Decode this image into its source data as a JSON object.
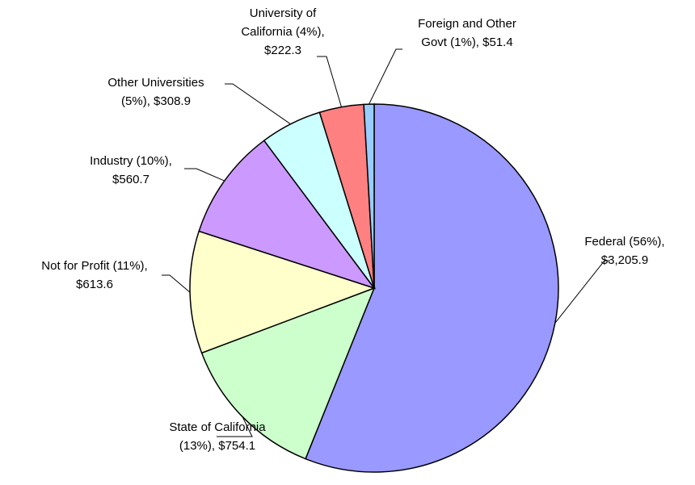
{
  "chart_data": {
    "type": "pie",
    "values": [
      3205.9,
      754.1,
      613.6,
      560.7,
      308.9,
      222.3,
      51.4
    ],
    "value_labels": [
      [
        "Federal (56%),",
        "$3,205.9"
      ],
      [
        "State of California",
        "(13%), $754.1"
      ],
      [
        "Not for Profit (11%),",
        "$613.6"
      ],
      [
        "Industry (10%),",
        "$560.7"
      ],
      [
        "Other Universities",
        "(5%), $308.9"
      ],
      [
        "University of",
        "California (4%),",
        "$222.3"
      ],
      [
        "Foreign and Other",
        "Govt (1%), $51.4"
      ]
    ],
    "colors": [
      "#9999ff",
      "#ccffcc",
      "#ffffcc",
      "#cc99ff",
      "#ccffff",
      "#ff8080",
      "#99ccff"
    ]
  }
}
